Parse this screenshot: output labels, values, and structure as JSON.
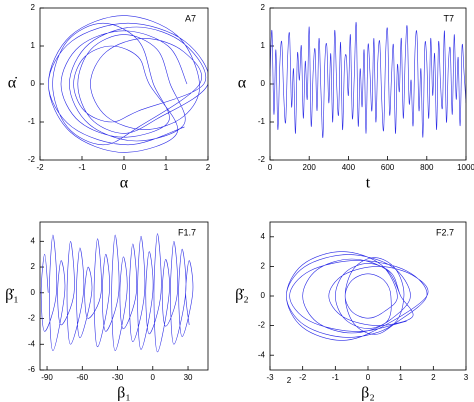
{
  "chart_data": [
    {
      "type": "line",
      "annotation": "A7",
      "xlabel": "α",
      "ylabel": "α̇",
      "color": "#2b2be6",
      "xlim": [
        -2,
        2
      ],
      "ylim": [
        -2,
        2
      ],
      "xticks": [
        -2,
        -1,
        0,
        1,
        2
      ],
      "yticks": [
        -2,
        -1,
        0,
        1,
        2
      ],
      "x": [
        1.5,
        1.06,
        0,
        -1.06,
        -1.5,
        -1.06,
        0,
        1.06,
        0.7,
        0.35,
        -0.5,
        -1.35,
        -1.7,
        -1.35,
        -0.5,
        0.35,
        1.8,
        1.42,
        0.5,
        -0.42,
        -0.8,
        -0.42,
        0.5,
        1.42,
        1.8,
        1.27,
        0,
        -1.27,
        -1.8,
        -1.27,
        0,
        1.27,
        0.6,
        0.34,
        -0.3,
        -0.94,
        -1.2,
        -0.94,
        -0.3,
        0.34,
        1.9,
        1.43,
        0.3,
        -0.83,
        -1.3,
        -0.83,
        0.3,
        1.43,
        1.1,
        0.78,
        0,
        -0.78,
        -1.1,
        -0.78,
        0,
        0.78,
        2.0,
        1.44,
        0.1,
        -1.24,
        -1.8,
        -1.24,
        0.1,
        1.44
      ],
      "values": [
        0,
        0.99,
        1.4,
        0.99,
        0,
        -0.99,
        -1.4,
        -0.99,
        0,
        1.13,
        1.6,
        1.13,
        0,
        -1.13,
        -1.6,
        -1.13,
        0,
        0.85,
        1.2,
        0.85,
        0,
        -0.85,
        -1.2,
        -0.85,
        0,
        1.27,
        1.8,
        1.27,
        0,
        -1.27,
        -1.8,
        -1.27,
        0,
        0.71,
        1.0,
        0.71,
        0,
        -0.71,
        -1.0,
        -0.71,
        0,
        1.06,
        1.5,
        1.06,
        0,
        -1.06,
        -1.5,
        -1.06,
        0,
        0.92,
        1.3,
        0.92,
        0,
        -0.92,
        -1.3,
        -0.92,
        0,
        1.13,
        1.6,
        1.13,
        0,
        -1.13,
        -1.6,
        -1.13
      ]
    },
    {
      "type": "line",
      "annotation": "T7",
      "xlabel": "t",
      "ylabel": "α",
      "color": "#2b2be6",
      "xlim": [
        0,
        1000
      ],
      "ylim": [
        -2,
        2
      ],
      "xticks": [
        0,
        200,
        400,
        600,
        800,
        1000
      ],
      "yticks": [
        -2,
        -1,
        0,
        1,
        2
      ],
      "x": [
        0,
        10,
        20,
        30,
        40,
        50,
        60,
        70,
        80,
        90,
        100,
        110,
        120,
        130,
        140,
        150,
        160,
        170,
        180,
        190,
        200,
        210,
        220,
        230,
        240,
        250,
        260,
        270,
        280,
        290,
        300,
        310,
        320,
        330,
        340,
        350,
        360,
        370,
        380,
        390,
        400,
        410,
        420,
        430,
        440,
        450,
        460,
        470,
        480,
        490,
        500,
        510,
        520,
        530,
        540,
        550,
        560,
        570,
        580,
        590,
        600,
        610,
        620,
        630,
        640,
        650,
        660,
        670,
        680,
        690,
        700,
        710,
        720,
        730,
        740,
        750,
        760,
        770,
        780,
        790,
        800,
        810,
        820,
        830,
        840,
        850,
        860,
        870,
        880,
        890,
        900,
        910,
        920,
        930,
        940,
        950,
        960,
        970,
        980,
        990,
        1000
      ],
      "values": [
        0.2,
        1.4,
        -0.8,
        0.9,
        -1.2,
        0.5,
        1.1,
        -0.3,
        -1.0,
        0.7,
        1.3,
        -0.6,
        0.4,
        -1.3,
        0.8,
        0.1,
        1.0,
        -0.9,
        0.6,
        -0.4,
        1.5,
        -1.1,
        0.3,
        0.9,
        -0.7,
        1.2,
        -0.2,
        -1.4,
        0.6,
        1.0,
        -0.5,
        0.8,
        -1.0,
        1.4,
        0.0,
        -0.8,
        1.1,
        -1.2,
        0.5,
        0.7,
        -0.3,
        1.3,
        -0.9,
        0.2,
        1.6,
        -1.1,
        0.4,
        -0.6,
        0.9,
        -1.3,
        1.0,
        0.3,
        -0.7,
        1.2,
        -1.0,
        0.6,
        1.1,
        -0.4,
        -1.2,
        0.8,
        1.4,
        -0.8,
        0.2,
        1.0,
        -1.3,
        0.5,
        -0.2,
        1.2,
        -0.9,
        0.7,
        1.5,
        -0.5,
        0.1,
        -1.1,
        0.9,
        1.3,
        -0.7,
        0.4,
        -1.4,
        1.0,
        0.6,
        -0.9,
        1.2,
        -0.3,
        0.8,
        -1.2,
        1.1,
        0.0,
        -0.6,
        1.4,
        -1.0,
        0.5,
        0.9,
        -0.8,
        1.3,
        -0.4,
        0.7,
        -1.1,
        1.0,
        0.3,
        -0.5
      ]
    },
    {
      "type": "line",
      "annotation": "F1.7",
      "xlabel": "β₁",
      "ylabel": "β̇₁",
      "color": "#2b2be6",
      "xlim": [
        -96,
        47
      ],
      "ylim": [
        -6,
        5.5
      ],
      "xticks": [
        -90,
        -60,
        -30,
        0,
        30
      ],
      "yticks": [
        -6,
        -4,
        -2,
        0,
        2,
        4
      ],
      "x": [
        -89,
        -92,
        -95,
        -92,
        -82,
        -85,
        -88,
        -85,
        -75,
        -78,
        -81,
        -78,
        -67,
        -70,
        -73,
        -70,
        -59,
        -62,
        -65,
        -62,
        -52,
        -55,
        -58,
        -55,
        -44,
        -47,
        -50,
        -47,
        -37,
        -40,
        -43,
        -40,
        -29,
        -32,
        -35,
        -32,
        -22,
        -25,
        -28,
        -25,
        -14,
        -17,
        -20,
        -17,
        -7,
        -10,
        -13,
        -10,
        0,
        -3,
        -6,
        -3,
        7,
        4,
        1,
        4,
        14,
        11,
        8,
        11,
        21,
        18,
        15,
        18,
        28,
        25,
        22,
        25,
        34,
        31,
        28,
        31
      ],
      "values": [
        0,
        3,
        0,
        -3,
        0,
        4.5,
        0,
        -4.5,
        0,
        2.5,
        0,
        -2.5,
        0,
        4,
        0,
        -4,
        0,
        3.5,
        0,
        -3.5,
        0,
        2,
        0,
        -2,
        0,
        4.2,
        0,
        -4.2,
        0,
        3,
        0,
        -3,
        0,
        4.5,
        0,
        -4.5,
        0,
        2.8,
        0,
        -2.8,
        0,
        3.8,
        0,
        -3.8,
        0,
        4.4,
        0,
        -4.4,
        0,
        3.2,
        0,
        -3.2,
        0,
        4.6,
        0,
        -4.6,
        0,
        2.6,
        0,
        -2.6,
        0,
        4,
        0,
        -4,
        0,
        3.4,
        0,
        -3.4,
        0,
        2.5,
        0,
        -2.5
      ]
    },
    {
      "type": "line",
      "annotation": "F2.7",
      "xlabel": "β₂",
      "ylabel": "β̇₂",
      "extra_label": "2",
      "color": "#2b2be6",
      "xlim": [
        -3,
        3
      ],
      "ylim": [
        -5,
        5
      ],
      "xticks": [
        -3,
        -2,
        -1,
        0,
        1,
        2,
        3
      ],
      "yticks": [
        -4,
        -2,
        0,
        2,
        4
      ],
      "x": [
        1.0,
        0.56,
        -0.5,
        -1.56,
        -2.0,
        -1.56,
        -0.5,
        0.56,
        0.7,
        0.49,
        0,
        -0.49,
        -0.7,
        -0.49,
        0,
        0.49,
        0.9,
        0.4,
        -0.8,
        -2.0,
        -2.5,
        -2.0,
        -0.8,
        0.4,
        1.8,
        1.36,
        0.3,
        -0.76,
        -1.2,
        -0.76,
        0.3,
        1.36,
        1.0,
        0.71,
        0,
        -0.71,
        -1.0,
        -0.71,
        0,
        0.71,
        1.3,
        0.74,
        -0.6,
        -1.94,
        -2.5,
        -1.94,
        -0.6,
        0.74,
        1.1,
        0.84,
        0.2,
        -0.44,
        -0.7,
        -0.44,
        0.2,
        0.84,
        1.8,
        1.18,
        -0.3,
        -1.78,
        -2.4,
        -1.78,
        -0.3,
        1.18
      ],
      "values": [
        0,
        1.77,
        2.5,
        1.77,
        0,
        -1.77,
        -2.5,
        -1.77,
        0,
        1.06,
        1.5,
        1.06,
        0,
        -1.06,
        -1.5,
        -1.06,
        0,
        2.12,
        3.0,
        2.12,
        0,
        -2.12,
        -3.0,
        -2.12,
        0,
        1.41,
        2.0,
        1.41,
        0,
        -1.41,
        -2.0,
        -1.41,
        0,
        1.56,
        2.2,
        1.56,
        0,
        -1.56,
        -2.2,
        -1.56,
        0,
        1.98,
        2.8,
        1.98,
        0,
        -1.98,
        -2.8,
        -1.98,
        0,
        1.84,
        2.6,
        1.84,
        0,
        -1.84,
        -2.6,
        -1.84,
        0,
        1.7,
        2.4,
        1.7,
        0,
        -1.7,
        -2.4,
        -1.7
      ]
    }
  ]
}
